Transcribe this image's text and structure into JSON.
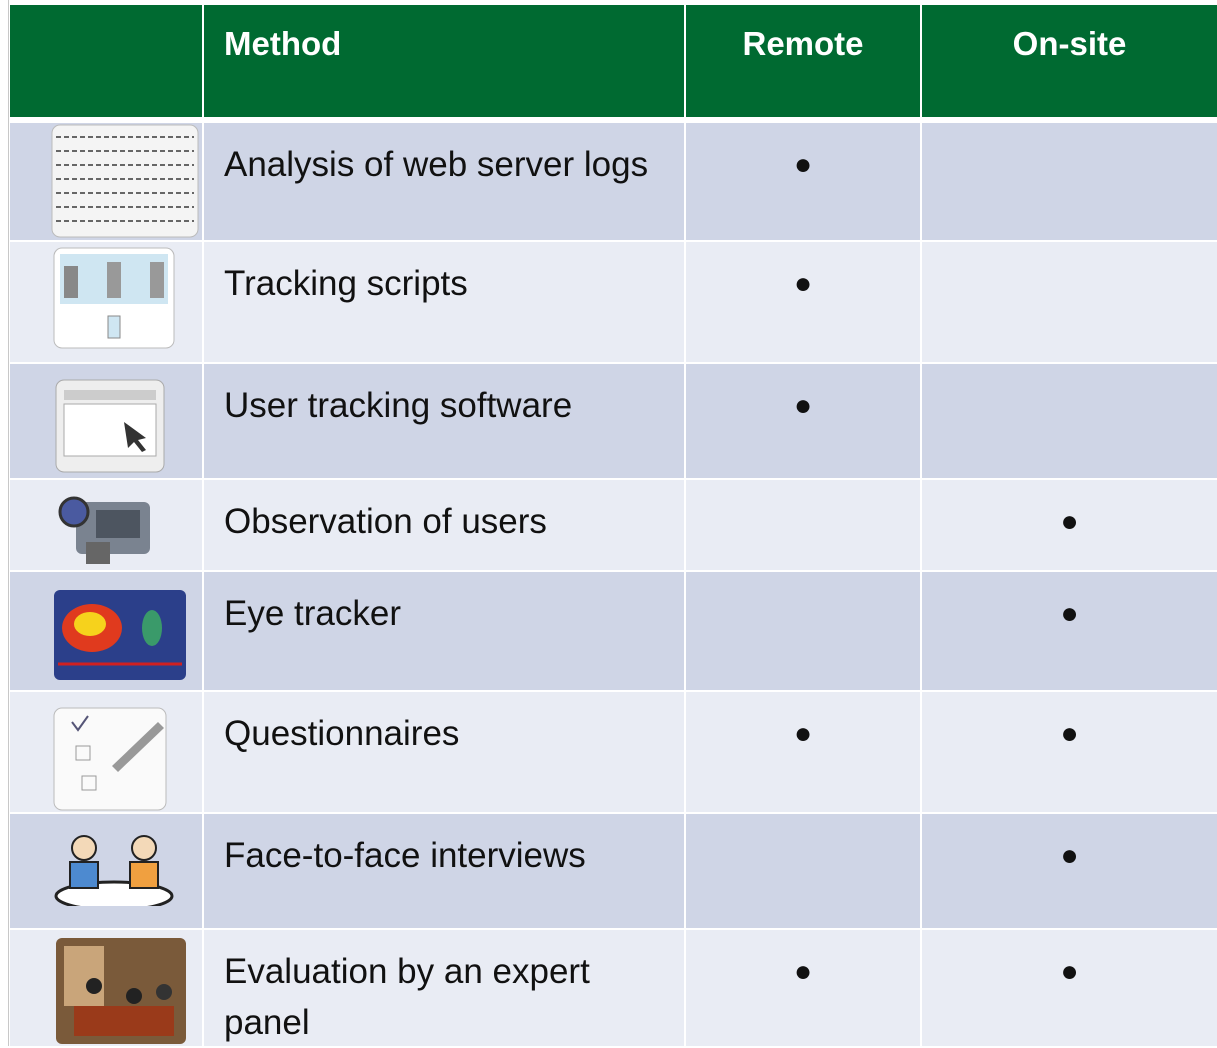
{
  "table": {
    "header": [
      "Method",
      "Remote",
      "On-site"
    ],
    "rows": [
      [
        "Analysis of web server logs",
        "●",
        null
      ],
      [
        "Tracking scripts",
        "●",
        null
      ],
      [
        "User tracking software",
        "●",
        null
      ],
      [
        "Observation of users",
        null,
        "●"
      ],
      [
        "Eye tracker",
        null,
        "●"
      ],
      [
        "Questionnaires",
        "●",
        "●"
      ],
      [
        "Face-to-face interviews",
        null,
        "●"
      ],
      [
        "Evaluation by an expert panel",
        "●",
        "●"
      ]
    ]
  }
}
